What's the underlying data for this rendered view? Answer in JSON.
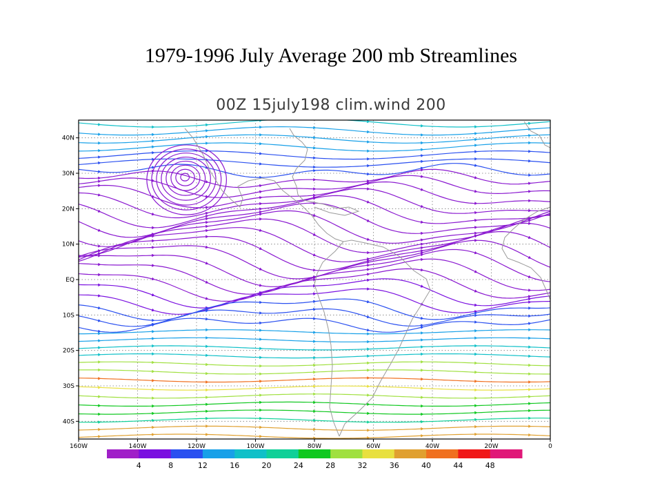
{
  "slide": {
    "title": "1979-1996 July Average 200 mb Streamlines"
  },
  "map": {
    "subtitle": "00Z 15july198 clim.wind 200",
    "lon_range": [
      -160,
      0
    ],
    "lat_range": [
      -45,
      45
    ],
    "lon_ticks": [
      {
        "value": -160,
        "label": "160W"
      },
      {
        "value": -140,
        "label": "140W"
      },
      {
        "value": -120,
        "label": "120W"
      },
      {
        "value": -100,
        "label": "100W"
      },
      {
        "value": -80,
        "label": "80W"
      },
      {
        "value": -60,
        "label": "60W"
      },
      {
        "value": -40,
        "label": "40W"
      },
      {
        "value": -20,
        "label": "20W"
      },
      {
        "value": 0,
        "label": "0"
      }
    ],
    "lat_ticks": [
      {
        "value": 40,
        "label": "40N"
      },
      {
        "value": 30,
        "label": "30N"
      },
      {
        "value": 20,
        "label": "20N"
      },
      {
        "value": 10,
        "label": "10N"
      },
      {
        "value": 0,
        "label": "EQ"
      },
      {
        "value": -10,
        "label": "10S"
      },
      {
        "value": -20,
        "label": "20S"
      },
      {
        "value": -30,
        "label": "30S"
      },
      {
        "value": -40,
        "label": "40S"
      }
    ],
    "gridlines": "dotted",
    "features": [
      "streamlines",
      "coastlines"
    ]
  },
  "colorbar": {
    "colors": [
      "#a020c8",
      "#7a10e0",
      "#2a50f0",
      "#18a0e8",
      "#10c0c8",
      "#10d098",
      "#10c820",
      "#a0e040",
      "#e8e040",
      "#e0a030",
      "#f07020",
      "#f01818",
      "#e01878"
    ],
    "labels": [
      "4",
      "8",
      "12",
      "16",
      "20",
      "24",
      "28",
      "32",
      "36",
      "40",
      "44",
      "48"
    ]
  }
}
